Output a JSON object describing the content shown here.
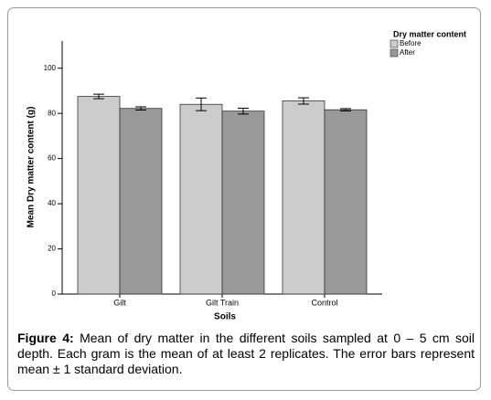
{
  "chart_data": {
    "type": "bar",
    "y_label": "Mean Dry matter content (g)",
    "x_label": "Soils",
    "legend_title": "Dry matter content",
    "categories": [
      "Gilt",
      "Gilt Train",
      "Control"
    ],
    "series": [
      {
        "name": "Before",
        "color": "#cccccc",
        "values": [
          87.5,
          84,
          85.5
        ],
        "errors": [
          1,
          2.8,
          1.4
        ]
      },
      {
        "name": "After",
        "color": "#999999",
        "values": [
          82.2,
          81,
          81.6
        ],
        "errors": [
          0.7,
          1.3,
          0.5
        ]
      }
    ],
    "ylim": [
      0,
      112
    ],
    "yticks": [
      0,
      20,
      40,
      60,
      80,
      100
    ]
  },
  "caption": {
    "label": "Figure 4:",
    "text": "Mean of dry matter in the different soils sampled at 0 – 5 cm soil depth. Each gram is the mean of at least 2 replicates. The error bars represent mean ± 1 standard deviation."
  }
}
